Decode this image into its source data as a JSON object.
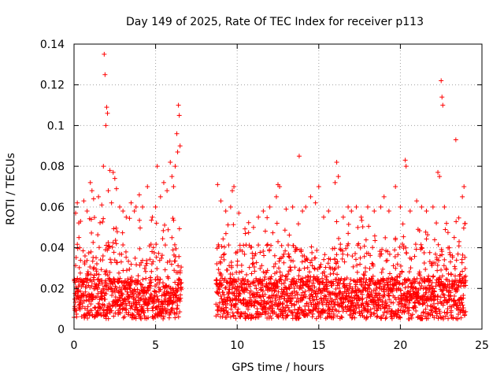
{
  "chart_data": {
    "type": "scatter",
    "title": "Day 149 of 2025, Rate Of TEC Index for receiver p113",
    "xlabel": "GPS time / hours",
    "ylabel": "ROTI / TECUs",
    "xlim": [
      0,
      25
    ],
    "ylim": [
      0,
      0.14
    ],
    "x_ticks": [
      0,
      5,
      10,
      15,
      20,
      25
    ],
    "x_tick_labels": [
      "0",
      "5",
      "10",
      "15",
      "20",
      "25"
    ],
    "y_ticks": [
      0,
      0.02,
      0.04,
      0.06,
      0.08,
      0.1,
      0.12,
      0.14
    ],
    "y_tick_labels": [
      "0",
      "0.02",
      "0.04",
      "0.06",
      "0.08",
      "0.1",
      "0.12",
      "0.14"
    ],
    "grid": true,
    "marker": "+",
    "color": "#ff0000",
    "data_gap_hours": [
      6.6,
      8.7
    ],
    "series": [
      {
        "name": "ROTI",
        "points": [
          [
            0.05,
            0.024
          ],
          [
            0.1,
            0.057
          ],
          [
            0.2,
            0.062
          ],
          [
            0.3,
            0.045
          ],
          [
            0.35,
            0.04
          ],
          [
            0.4,
            0.053
          ],
          [
            0.6,
            0.063
          ],
          [
            0.8,
            0.058
          ],
          [
            1.0,
            0.072
          ],
          [
            1.1,
            0.068
          ],
          [
            1.2,
            0.064
          ],
          [
            1.5,
            0.065
          ],
          [
            1.7,
            0.061
          ],
          [
            1.8,
            0.08
          ],
          [
            1.85,
            0.135
          ],
          [
            1.9,
            0.125
          ],
          [
            1.95,
            0.1
          ],
          [
            2.0,
            0.109
          ],
          [
            2.05,
            0.106
          ],
          [
            2.1,
            0.068
          ],
          [
            2.2,
            0.078
          ],
          [
            2.3,
            0.062
          ],
          [
            2.4,
            0.077
          ],
          [
            2.5,
            0.074
          ],
          [
            2.6,
            0.069
          ],
          [
            2.8,
            0.06
          ],
          [
            3.0,
            0.058
          ],
          [
            3.2,
            0.055
          ],
          [
            3.5,
            0.062
          ],
          [
            3.7,
            0.058
          ],
          [
            3.8,
            0.06
          ],
          [
            4.0,
            0.066
          ],
          [
            4.2,
            0.06
          ],
          [
            4.5,
            0.07
          ],
          [
            4.8,
            0.055
          ],
          [
            5.0,
            0.06
          ],
          [
            5.1,
            0.08
          ],
          [
            5.3,
            0.065
          ],
          [
            5.5,
            0.072
          ],
          [
            5.7,
            0.068
          ],
          [
            5.9,
            0.082
          ],
          [
            6.0,
            0.075
          ],
          [
            6.1,
            0.07
          ],
          [
            6.2,
            0.08
          ],
          [
            6.3,
            0.096
          ],
          [
            6.35,
            0.087
          ],
          [
            6.4,
            0.11
          ],
          [
            6.45,
            0.105
          ],
          [
            6.5,
            0.09
          ],
          [
            8.8,
            0.071
          ],
          [
            9.0,
            0.063
          ],
          [
            9.3,
            0.058
          ],
          [
            9.6,
            0.06
          ],
          [
            9.7,
            0.068
          ],
          [
            9.8,
            0.07
          ],
          [
            10.1,
            0.057
          ],
          [
            10.5,
            0.047
          ],
          [
            11.0,
            0.05
          ],
          [
            11.3,
            0.055
          ],
          [
            11.6,
            0.058
          ],
          [
            12.0,
            0.06
          ],
          [
            12.4,
            0.065
          ],
          [
            12.5,
            0.071
          ],
          [
            12.6,
            0.07
          ],
          [
            13.0,
            0.059
          ],
          [
            13.4,
            0.06
          ],
          [
            13.8,
            0.085
          ],
          [
            14.0,
            0.058
          ],
          [
            14.2,
            0.06
          ],
          [
            14.5,
            0.065
          ],
          [
            14.8,
            0.062
          ],
          [
            15.0,
            0.07
          ],
          [
            15.3,
            0.055
          ],
          [
            15.6,
            0.058
          ],
          [
            16.0,
            0.072
          ],
          [
            16.1,
            0.082
          ],
          [
            16.2,
            0.075
          ],
          [
            16.5,
            0.055
          ],
          [
            16.8,
            0.06
          ],
          [
            17.0,
            0.058
          ],
          [
            17.3,
            0.06
          ],
          [
            17.6,
            0.055
          ],
          [
            18.0,
            0.06
          ],
          [
            18.4,
            0.058
          ],
          [
            18.8,
            0.06
          ],
          [
            19.0,
            0.065
          ],
          [
            19.3,
            0.058
          ],
          [
            19.7,
            0.07
          ],
          [
            20.0,
            0.06
          ],
          [
            20.3,
            0.083
          ],
          [
            20.35,
            0.08
          ],
          [
            20.6,
            0.058
          ],
          [
            21.0,
            0.063
          ],
          [
            21.3,
            0.06
          ],
          [
            21.6,
            0.058
          ],
          [
            22.0,
            0.06
          ],
          [
            22.3,
            0.077
          ],
          [
            22.4,
            0.075
          ],
          [
            22.5,
            0.122
          ],
          [
            22.55,
            0.114
          ],
          [
            22.6,
            0.11
          ],
          [
            22.7,
            0.06
          ],
          [
            23.0,
            0.04
          ],
          [
            23.3,
            0.045
          ],
          [
            23.4,
            0.093
          ],
          [
            23.6,
            0.043
          ],
          [
            23.8,
            0.065
          ],
          [
            23.9,
            0.07
          ],
          [
            24.0,
            0.026
          ]
        ]
      }
    ]
  }
}
